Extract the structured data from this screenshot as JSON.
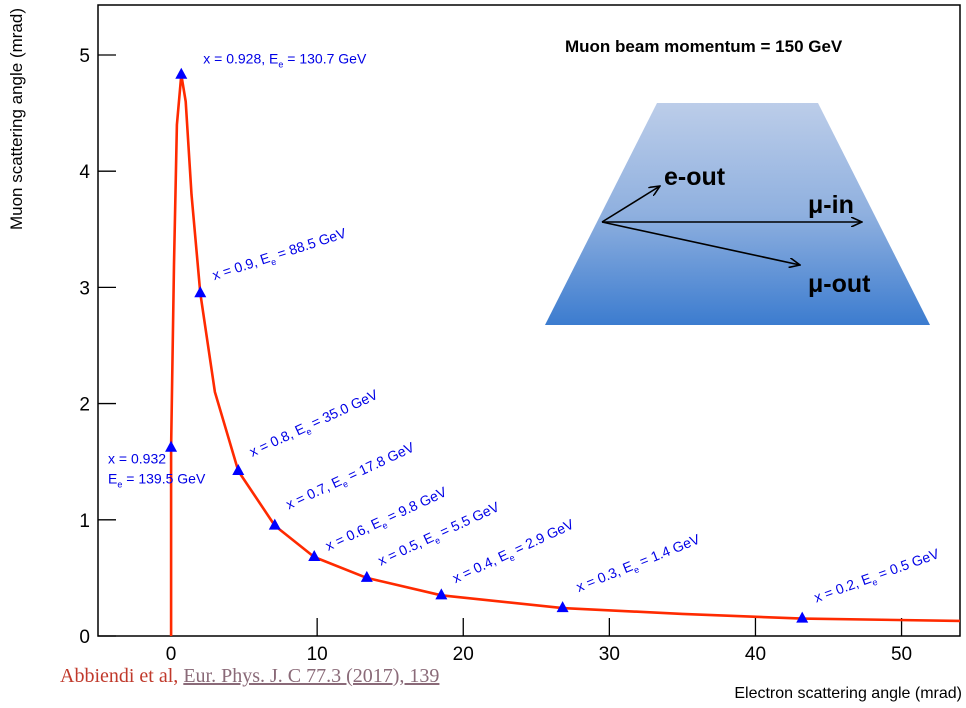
{
  "chart_data": {
    "type": "line",
    "xlabel": "Electron scattering angle (mrad)",
    "ylabel": "Muon scattering angle (mrad)",
    "xlim": [
      -5,
      54
    ],
    "ylim": [
      0,
      5.43
    ],
    "xticks": [
      0,
      10,
      20,
      30,
      40,
      50
    ],
    "yticks": [
      0,
      1,
      2,
      3,
      4,
      5
    ],
    "curve": {
      "color": "#ff2a00",
      "x": [
        0,
        0,
        0.2,
        0.4,
        0.7,
        1.0,
        1.4,
        2.0,
        3.0,
        4.6,
        7.1,
        9.8,
        13.4,
        18.5,
        26.8,
        35,
        43.2,
        54
      ],
      "y": [
        0,
        1.62,
        3.2,
        4.4,
        4.83,
        4.6,
        3.8,
        2.95,
        2.1,
        1.42,
        0.95,
        0.68,
        0.5,
        0.35,
        0.24,
        0.19,
        0.15,
        0.13
      ]
    },
    "markers": {
      "color": "#0000ff",
      "x": [
        0.0,
        0.7,
        2.0,
        4.6,
        7.1,
        9.8,
        13.4,
        18.5,
        26.8,
        43.2
      ],
      "y": [
        1.62,
        4.83,
        2.95,
        1.42,
        0.95,
        0.68,
        0.5,
        0.35,
        0.24,
        0.15
      ],
      "labels": [
        {
          "line1": "x = 0.932",
          "a": "E",
          "sub": "e",
          "b": " = 139.5 GeV"
        },
        {
          "a": "x = 0.928, E",
          "sub": "e",
          "b": " = 130.7 GeV"
        },
        {
          "a": "x = 0.9, E",
          "sub": "e",
          "b": " = 88.5 GeV"
        },
        {
          "a": "x = 0.8, E",
          "sub": "e",
          "b": " = 35.0 GeV"
        },
        {
          "a": "x = 0.7, E",
          "sub": "e",
          "b": " = 17.8 GeV"
        },
        {
          "a": "x = 0.6, E",
          "sub": "e",
          "b": " =  9.8 GeV"
        },
        {
          "a": "x = 0.5, E",
          "sub": "e",
          "b": " = 5.5 GeV"
        },
        {
          "a": "x = 0.4, E",
          "sub": "e",
          "b": " = 2.9 GeV"
        },
        {
          "a": "x = 0.3, E",
          "sub": "e",
          "b": " = 1.4 GeV"
        },
        {
          "a": "x = 0.2, E",
          "sub": "e",
          "b": " = 0.5 GeV"
        }
      ]
    },
    "inset": {
      "title": "Muon beam momentum  = 150 GeV",
      "e_out": "e-out",
      "mu_in": "μ-in",
      "mu_out": "μ-out"
    },
    "citation": {
      "authors": "Abbiendi et al, ",
      "reference": "Eur. Phys. J. C 77.3 (2017), 139"
    }
  }
}
